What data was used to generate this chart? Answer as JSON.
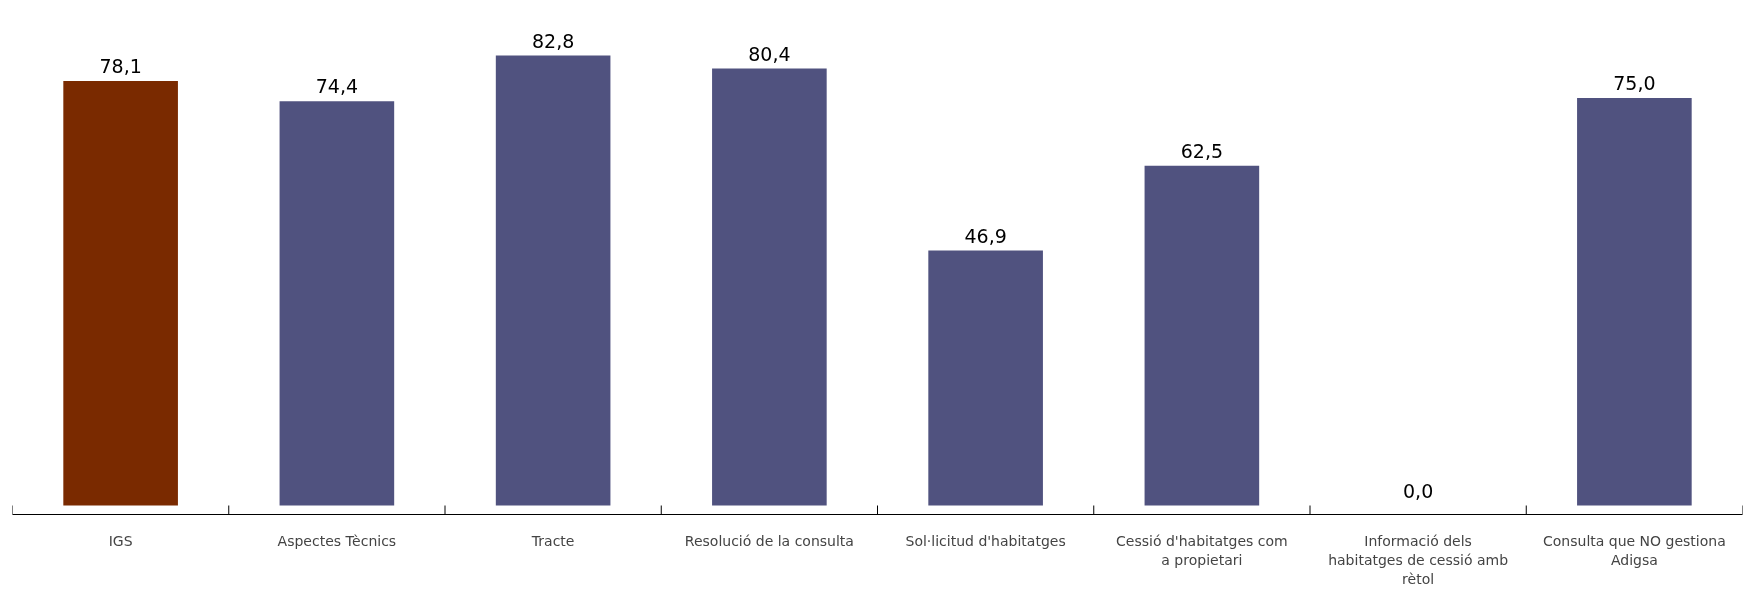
{
  "chart_data": {
    "type": "bar",
    "categories": [
      "IGS",
      "Aspectes Tècnics",
      "Tracte",
      "Resolució de la consulta",
      "Sol·licitud d'habitatges",
      "Cessió d'habitatges com a propietari",
      "Informació dels habitatges de cessió amb rètol",
      "Consulta que NO gestiona Adigsa"
    ],
    "values": [
      78.1,
      74.4,
      82.8,
      80.4,
      46.9,
      62.5,
      0.0,
      75.0
    ],
    "value_labels": [
      "78,1",
      "74,4",
      "82,8",
      "80,4",
      "46,9",
      "62,5",
      "0,0",
      "75,0"
    ],
    "colors": [
      "#7a2a00",
      "#50527f",
      "#50527f",
      "#50527f",
      "#50527f",
      "#50527f",
      "#50527f",
      "#50527f"
    ],
    "grid": false
  }
}
